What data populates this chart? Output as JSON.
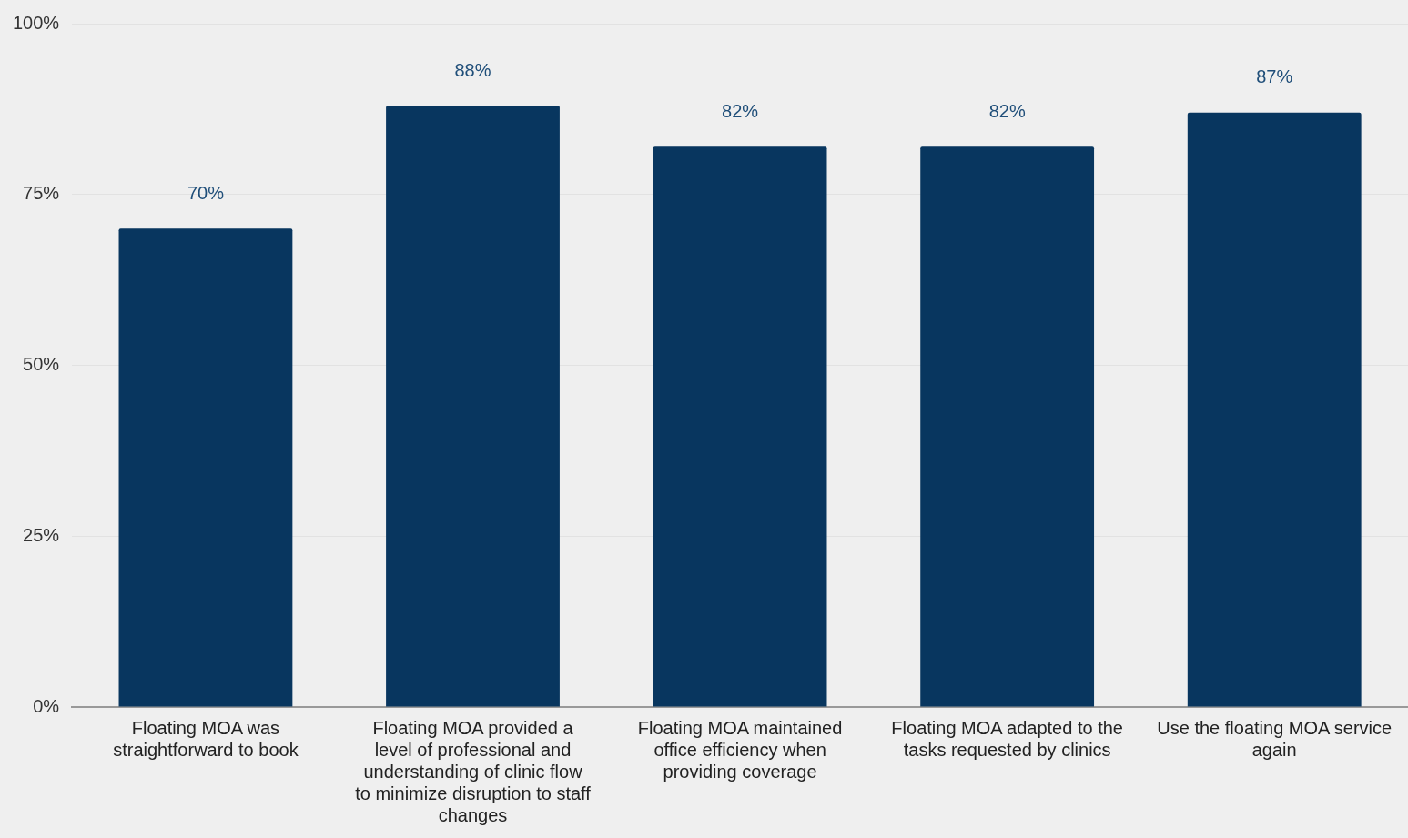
{
  "chart_data": {
    "type": "bar",
    "categories": [
      "Floating MOA was straightforward to book",
      "Floating MOA provided a level of professional and understanding of clinic flow to minimize disruption to staff changes",
      "Floating MOA maintained office efficiency when providing coverage",
      "Floating MOA adapted to the tasks requested by clinics",
      "Use the floating MOA service again"
    ],
    "values": [
      70,
      88,
      82,
      82,
      87
    ],
    "value_labels": [
      "70%",
      "88%",
      "82%",
      "82%",
      "87%"
    ],
    "color": "#08365f",
    "ylim": [
      0,
      100
    ],
    "yticks": [
      {
        "value": 0,
        "label": "0%"
      },
      {
        "value": 25,
        "label": "25%"
      },
      {
        "value": 50,
        "label": "50%"
      },
      {
        "value": 75,
        "label": "75%"
      },
      {
        "value": 100,
        "label": "100%"
      }
    ],
    "grid": "y",
    "legend": false
  }
}
